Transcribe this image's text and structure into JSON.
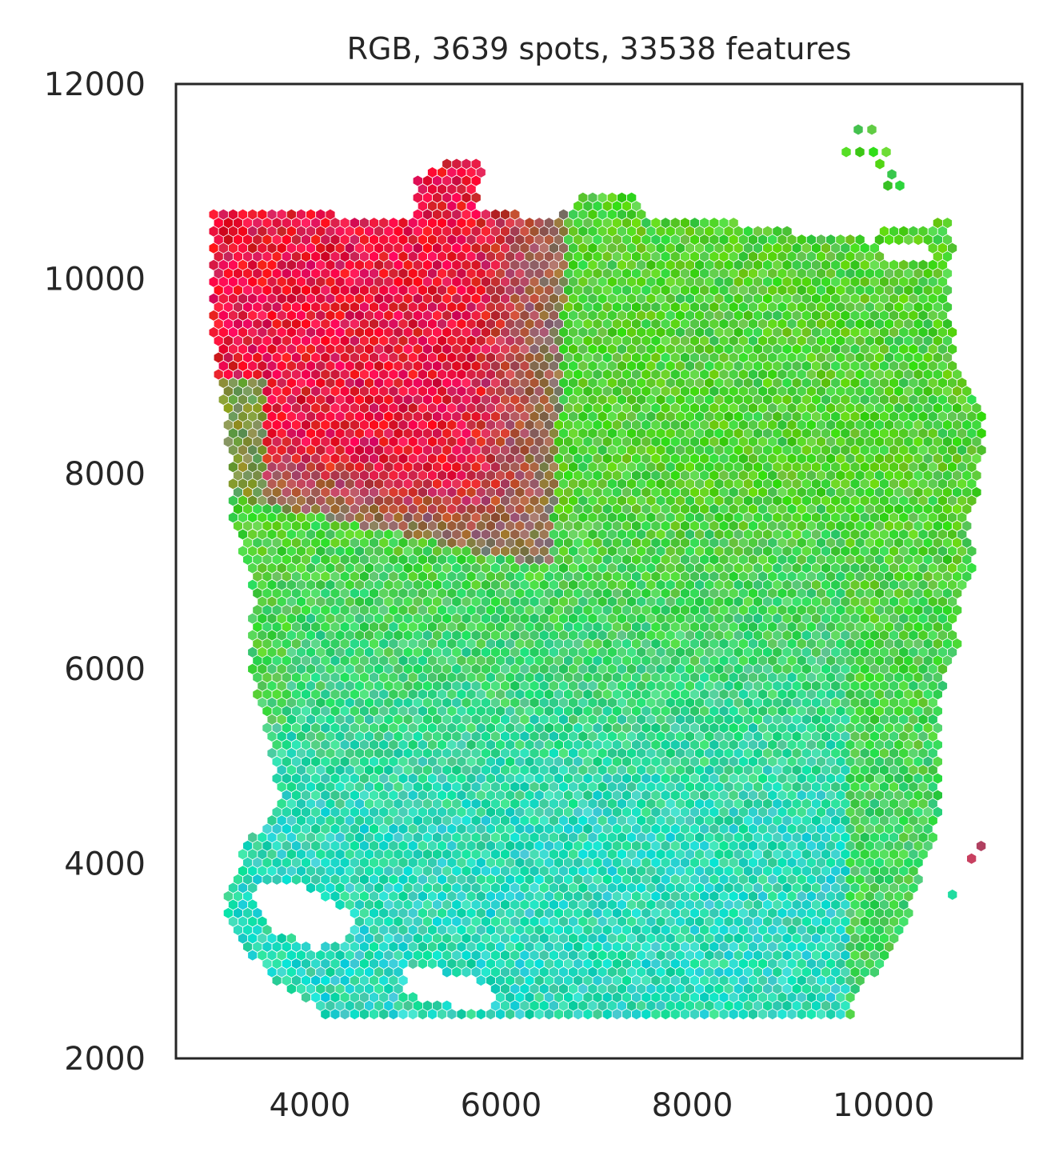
{
  "chart_data": {
    "type": "scatter",
    "title": "RGB, 3639 spots, 33538 features",
    "xlabel": "",
    "ylabel": "",
    "xlim": [
      2600,
      11450
    ],
    "ylim": [
      2000,
      12000
    ],
    "x_ticks": [
      {
        "value": 4000,
        "label": "4000"
      },
      {
        "value": 6000,
        "label": "6000"
      },
      {
        "value": 8000,
        "label": "8000"
      },
      {
        "value": 10000,
        "label": "10000"
      }
    ],
    "y_ticks": [
      {
        "value": 2000,
        "label": "2000"
      },
      {
        "value": 4000,
        "label": "4000"
      },
      {
        "value": 6000,
        "label": "6000"
      },
      {
        "value": 8000,
        "label": "8000"
      },
      {
        "value": 10000,
        "label": "10000"
      },
      {
        "value": 12000,
        "label": "12000"
      }
    ],
    "grid": false,
    "marker": "hexagon",
    "colors": {
      "red_region": "#e8143c",
      "olive_transition": "#8a7a55",
      "green_region": "#4fd030",
      "cyan_region": "#28d8b8",
      "dark_red_outlier": "#b04060"
    },
    "regions": [
      {
        "name": "red",
        "color": "#e8143c",
        "approx_x": [
          3200,
          6800
        ],
        "approx_y": [
          7200,
          11200
        ]
      },
      {
        "name": "green",
        "color": "#4fd030",
        "approx_x": [
          6800,
          11000
        ],
        "approx_y": [
          6000,
          11600
        ]
      },
      {
        "name": "cyan-teal",
        "color": "#28d8b8",
        "approx_x": [
          3300,
          10600
        ],
        "approx_y": [
          2500,
          7000
        ]
      }
    ],
    "outliers": [
      {
        "x": 11020,
        "y": 4180,
        "color": "#b04060"
      },
      {
        "x": 10920,
        "y": 4050,
        "color": "#c84060"
      },
      {
        "x": 10720,
        "y": 3680,
        "color": "#20dca0"
      }
    ]
  }
}
